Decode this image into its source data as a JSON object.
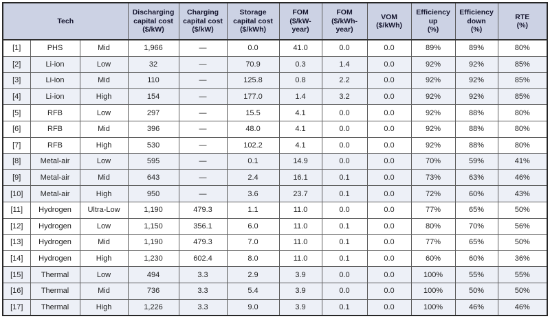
{
  "table": {
    "title_semantic": "storage-technology-cost-assumptions",
    "colors": {
      "header_bg": "#ccd2e4",
      "shaded_row_bg": "#edf0f7",
      "grid_line": "#5c5c5c",
      "outer_border": "#262626"
    },
    "headers": {
      "tech": "Tech",
      "columns": [
        "Discharging\ncapital cost\n($/kW)",
        "Charging\ncapital cost\n($/kW)",
        "Storage\ncapital cost\n($/kWh)",
        "FOM\n($/kW-\nyear)",
        "FOM\n($/kWh-\nyear)",
        "VOM\n($/kWh)",
        "Efficiency\nup\n(%)",
        "Efficiency\ndown\n(%)",
        "RTE\n(%)"
      ]
    },
    "rows": [
      {
        "id": "[1]",
        "tech": "PHS",
        "scenario": "Mid",
        "values": [
          "1,966",
          "—",
          "0.0",
          "41.0",
          "0.0",
          "0.0",
          "89%",
          "89%",
          "80%"
        ]
      },
      {
        "id": "[2]",
        "tech": "Li-ion",
        "scenario": "Low",
        "values": [
          "32",
          "—",
          "70.9",
          "0.3",
          "1.4",
          "0.0",
          "92%",
          "92%",
          "85%"
        ]
      },
      {
        "id": "[3]",
        "tech": "Li-ion",
        "scenario": "Mid",
        "values": [
          "110",
          "—",
          "125.8",
          "0.8",
          "2.2",
          "0.0",
          "92%",
          "92%",
          "85%"
        ]
      },
      {
        "id": "[4]",
        "tech": "Li-ion",
        "scenario": "High",
        "values": [
          "154",
          "—",
          "177.0",
          "1.4",
          "3.2",
          "0.0",
          "92%",
          "92%",
          "85%"
        ]
      },
      {
        "id": "[5]",
        "tech": "RFB",
        "scenario": "Low",
        "values": [
          "297",
          "—",
          "15.5",
          "4.1",
          "0.0",
          "0.0",
          "92%",
          "88%",
          "80%"
        ]
      },
      {
        "id": "[6]",
        "tech": "RFB",
        "scenario": "Mid",
        "values": [
          "396",
          "—",
          "48.0",
          "4.1",
          "0.0",
          "0.0",
          "92%",
          "88%",
          "80%"
        ]
      },
      {
        "id": "[7]",
        "tech": "RFB",
        "scenario": "High",
        "values": [
          "530",
          "—",
          "102.2",
          "4.1",
          "0.0",
          "0.0",
          "92%",
          "88%",
          "80%"
        ]
      },
      {
        "id": "[8]",
        "tech": "Metal-air",
        "scenario": "Low",
        "values": [
          "595",
          "—",
          "0.1",
          "14.9",
          "0.0",
          "0.0",
          "70%",
          "59%",
          "41%"
        ]
      },
      {
        "id": "[9]",
        "tech": "Metal-air",
        "scenario": "Mid",
        "values": [
          "643",
          "—",
          "2.4",
          "16.1",
          "0.1",
          "0.0",
          "73%",
          "63%",
          "46%"
        ]
      },
      {
        "id": "[10]",
        "tech": "Metal-air",
        "scenario": "High",
        "values": [
          "950",
          "—",
          "3.6",
          "23.7",
          "0.1",
          "0.0",
          "72%",
          "60%",
          "43%"
        ]
      },
      {
        "id": "[11]",
        "tech": "Hydrogen",
        "scenario": "Ultra-Low",
        "values": [
          "1,190",
          "479.3",
          "1.1",
          "11.0",
          "0.0",
          "0.0",
          "77%",
          "65%",
          "50%"
        ]
      },
      {
        "id": "[12]",
        "tech": "Hydrogen",
        "scenario": "Low",
        "values": [
          "1,150",
          "356.1",
          "6.0",
          "11.0",
          "0.1",
          "0.0",
          "80%",
          "70%",
          "56%"
        ]
      },
      {
        "id": "[13]",
        "tech": "Hydrogen",
        "scenario": "Mid",
        "values": [
          "1,190",
          "479.3",
          "7.0",
          "11.0",
          "0.1",
          "0.0",
          "77%",
          "65%",
          "50%"
        ]
      },
      {
        "id": "[14]",
        "tech": "Hydrogen",
        "scenario": "High",
        "values": [
          "1,230",
          "602.4",
          "8.0",
          "11.0",
          "0.1",
          "0.0",
          "60%",
          "60%",
          "36%"
        ]
      },
      {
        "id": "[15]",
        "tech": "Thermal",
        "scenario": "Low",
        "values": [
          "494",
          "3.3",
          "2.9",
          "3.9",
          "0.0",
          "0.0",
          "100%",
          "55%",
          "55%"
        ]
      },
      {
        "id": "[16]",
        "tech": "Thermal",
        "scenario": "Mid",
        "values": [
          "736",
          "3.3",
          "5.4",
          "3.9",
          "0.0",
          "0.0",
          "100%",
          "50%",
          "50%"
        ]
      },
      {
        "id": "[17]",
        "tech": "Thermal",
        "scenario": "High",
        "values": [
          "1,226",
          "3.3",
          "9.0",
          "3.9",
          "0.1",
          "0.0",
          "100%",
          "46%",
          "46%"
        ]
      }
    ]
  }
}
